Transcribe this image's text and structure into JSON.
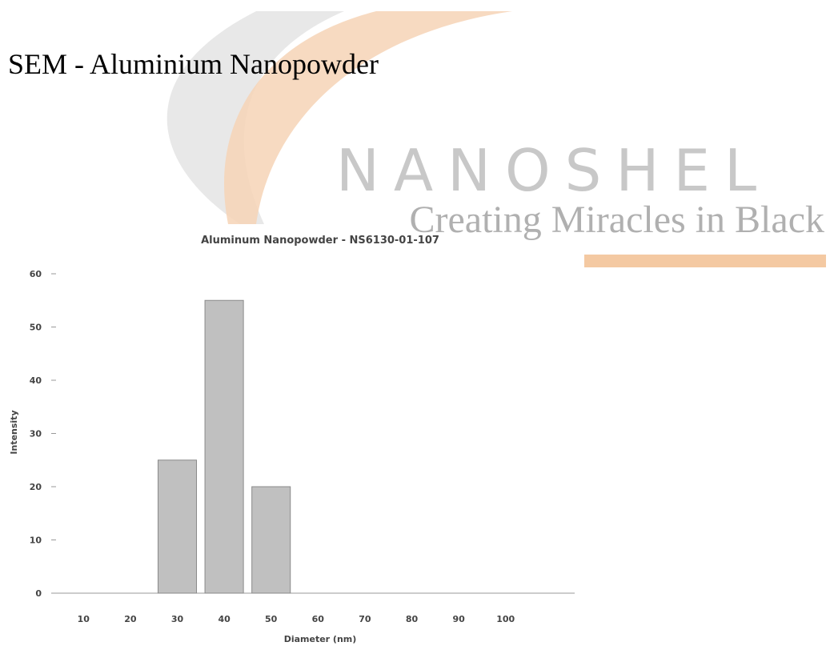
{
  "header": {
    "title": "SEM - Aluminium Nanopowder",
    "logo": "NANOSHEL",
    "tagline": "Creating Miracles in Black"
  },
  "chart_data": {
    "type": "bar",
    "title": "Aluminum Nanopowder - NS6130-01-107",
    "x_label": "Diameter (nm)",
    "y_label": "Intensity",
    "categories": [
      "10",
      "20",
      "30",
      "40",
      "50",
      "60",
      "70",
      "80",
      "90",
      "100"
    ],
    "values": [
      0,
      0,
      25,
      55,
      20,
      0,
      0,
      0,
      0,
      0
    ],
    "color": "#c0c0c0",
    "ylim": [
      0,
      60
    ],
    "yticks": [
      0,
      10,
      20,
      30,
      40,
      50,
      60
    ],
    "grid": false
  }
}
